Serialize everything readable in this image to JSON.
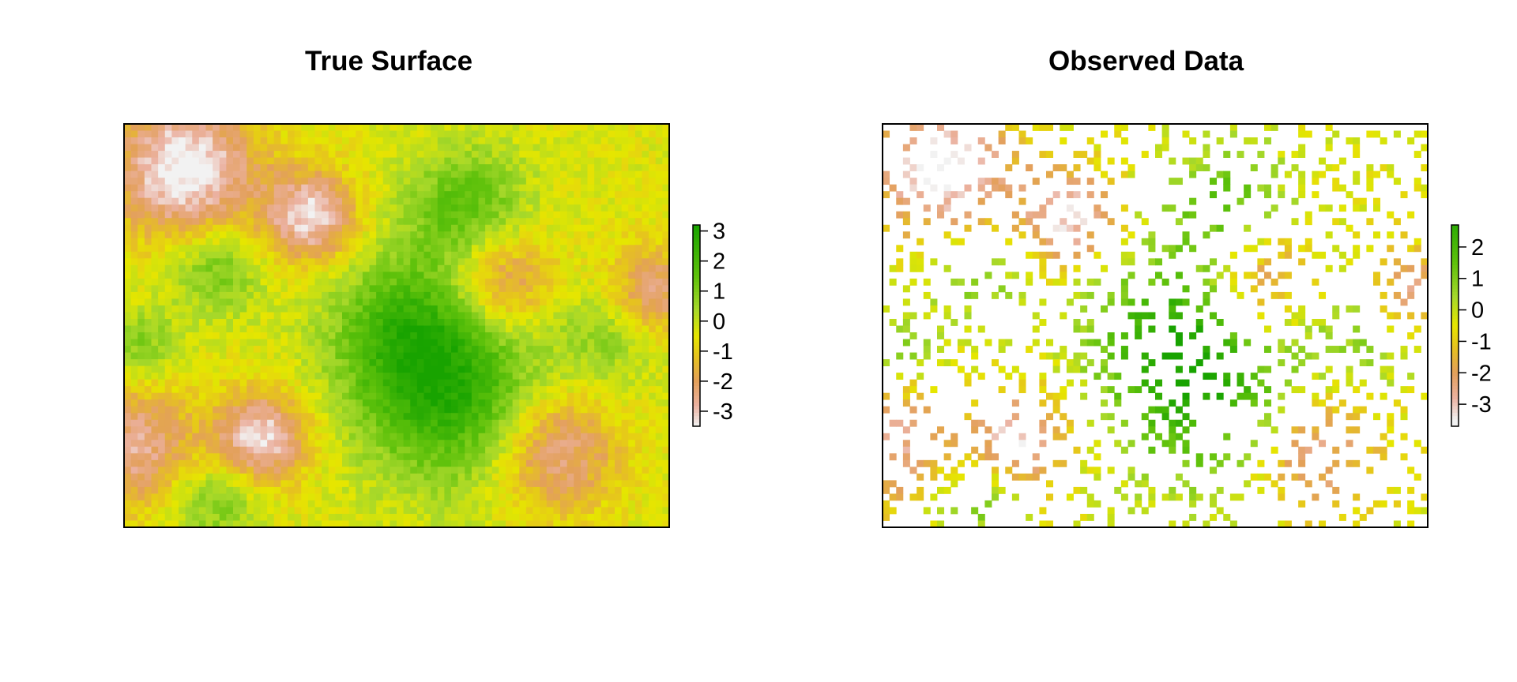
{
  "chart_data": [
    {
      "type": "heatmap",
      "title": "True Surface",
      "xlabel": "",
      "ylabel": "",
      "axes_shown": false,
      "legend": "right",
      "grid": false,
      "colorscale": {
        "name": "terrain",
        "colors": [
          "#f2f2f2",
          "#ebb1a0",
          "#e3a05a",
          "#e6c21f",
          "#e6e600",
          "#a6d82a",
          "#5ec10b",
          "#18a300"
        ],
        "stops": [
          -3.5,
          -2.8,
          -2.0,
          -1.2,
          -0.5,
          0.4,
          1.5,
          3.2
        ]
      },
      "colorbar": {
        "min": -3.5,
        "max": 3.2,
        "ticks": [
          3,
          2,
          1,
          0,
          -1,
          -2,
          -3
        ],
        "tick_labels": [
          "3",
          "2",
          "1",
          "0",
          "-1",
          "-2",
          "-3"
        ]
      },
      "grid_size": {
        "cols": 80,
        "rows": 60
      },
      "field_features": [
        {
          "x": 0.11,
          "y": 0.89,
          "value": -3.4,
          "sigma": 0.09
        },
        {
          "x": 0.34,
          "y": 0.77,
          "value": -3.0,
          "sigma": 0.06
        },
        {
          "x": 0.25,
          "y": 0.22,
          "value": -3.1,
          "sigma": 0.06
        },
        {
          "x": 0.69,
          "y": 0.61,
          "value": -2.3,
          "sigma": 0.07
        },
        {
          "x": 0.79,
          "y": 0.19,
          "value": -2.4,
          "sigma": 0.08
        },
        {
          "x": 0.97,
          "y": 0.58,
          "value": -2.2,
          "sigma": 0.06
        },
        {
          "x": 0.02,
          "y": 0.2,
          "value": -2.3,
          "sigma": 0.08
        },
        {
          "x": 0.17,
          "y": 0.64,
          "value": 1.6,
          "sigma": 0.06
        },
        {
          "x": 0.6,
          "y": 0.33,
          "value": 2.8,
          "sigma": 0.12
        },
        {
          "x": 0.52,
          "y": 0.5,
          "value": 2.0,
          "sigma": 0.1
        },
        {
          "x": 0.63,
          "y": 0.79,
          "value": 2.0,
          "sigma": 0.08
        },
        {
          "x": 0.03,
          "y": 0.45,
          "value": 1.3,
          "sigma": 0.05
        },
        {
          "x": 0.17,
          "y": 0.07,
          "value": 1.5,
          "sigma": 0.06
        },
        {
          "x": 0.89,
          "y": 0.48,
          "value": 1.2,
          "sigma": 0.07
        }
      ]
    },
    {
      "type": "heatmap",
      "title": "Observed Data",
      "xlabel": "",
      "ylabel": "",
      "axes_shown": false,
      "legend": "right",
      "grid": false,
      "observed_fraction": 0.22,
      "colorscale": {
        "name": "terrain",
        "colors": [
          "#f2f2f2",
          "#ebb1a0",
          "#e3a05a",
          "#e6c21f",
          "#e6e600",
          "#a6d82a",
          "#5ec10b",
          "#18a300"
        ],
        "stops": [
          -3.5,
          -2.8,
          -2.0,
          -1.2,
          -0.5,
          0.4,
          1.5,
          3.2
        ]
      },
      "colorbar": {
        "min": -3.7,
        "max": 2.7,
        "ticks": [
          2,
          1,
          0,
          -1,
          -2,
          -3
        ],
        "tick_labels": [
          "2",
          "1",
          "0",
          "-1",
          "-2",
          "-3"
        ]
      }
    }
  ]
}
